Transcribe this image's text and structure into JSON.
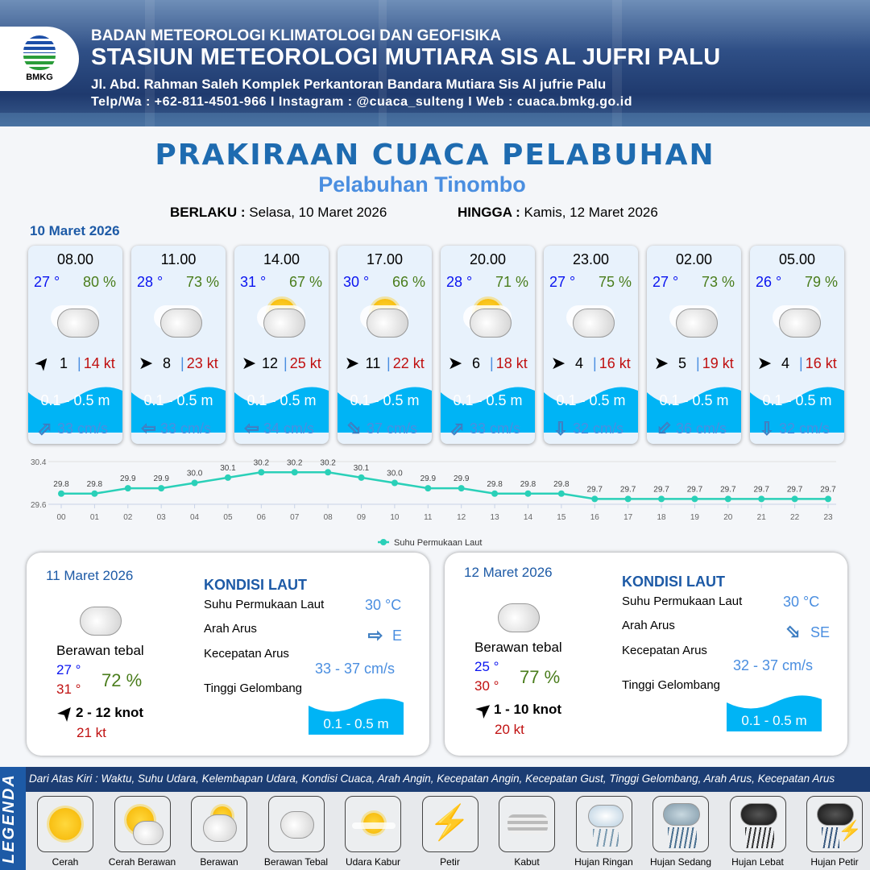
{
  "header": {
    "logo_text": "BMKG",
    "agency": "BADAN METEOROLOGI KLIMATOLOGI DAN GEOFISIKA",
    "station": "STASIUN METEOROLOGI MUTIARA SIS AL JUFRI PALU",
    "address": "Jl. Abd. Rahman Saleh Komplek Perkantoran Bandara Mutiara Sis Al jufrie Palu",
    "contact": "Telp/Wa : +62-811-4501-966  I  Instagram : @cuaca_sulteng  I  Web : cuaca.bmkg.go.id"
  },
  "title": "PRAKIRAAN CUACA PELABUHAN",
  "subtitle": "Pelabuhan Tinombo",
  "validity": {
    "from_label": "BERLAKU :",
    "from": "Selasa, 10 Maret 2026",
    "to_label": "HINGGA :",
    "to": "Kamis, 12 Maret 2026"
  },
  "day0": "10 Maret 2026",
  "colors": {
    "temp": "#0a14f0",
    "humidity": "#4a7d1c",
    "gust": "#c01010",
    "wave": "#00b4f5",
    "accent": "#1d5aa6",
    "sst_line": "#2ad0b8"
  },
  "cards": [
    {
      "time": "08.00",
      "temp": "27 °",
      "rh": "80 %",
      "weather": "berawan-tebal",
      "wind_dir_deg": -50,
      "wind": "1",
      "gust": "14 kt",
      "wave": "0.1 - 0.5 m",
      "current_dir": "NE",
      "current": "33 cm/s"
    },
    {
      "time": "11.00",
      "temp": "28 °",
      "rh": "73 %",
      "weather": "berawan-tebal",
      "wind_dir_deg": 0,
      "wind": "8",
      "gust": "23 kt",
      "wave": "0.1 - 0.5 m",
      "current_dir": "W",
      "current": "33 cm/s"
    },
    {
      "time": "14.00",
      "temp": "31 °",
      "rh": "67 %",
      "weather": "berawan",
      "wind_dir_deg": 0,
      "wind": "12",
      "gust": "25 kt",
      "wave": "0.1 - 0.5 m",
      "current_dir": "W",
      "current": "34 cm/s"
    },
    {
      "time": "17.00",
      "temp": "30 °",
      "rh": "66 %",
      "weather": "berawan",
      "wind_dir_deg": 0,
      "wind": "11",
      "gust": "22 kt",
      "wave": "0.1 - 0.5 m",
      "current_dir": "SE",
      "current": "37 cm/s"
    },
    {
      "time": "20.00",
      "temp": "28 °",
      "rh": "71 %",
      "weather": "berawan",
      "wind_dir_deg": 0,
      "wind": "6",
      "gust": "18 kt",
      "wave": "0.1 - 0.5 m",
      "current_dir": "NE",
      "current": "33 cm/s"
    },
    {
      "time": "23.00",
      "temp": "27 °",
      "rh": "75 %",
      "weather": "berawan-tebal",
      "wind_dir_deg": 0,
      "wind": "4",
      "gust": "16 kt",
      "wave": "0.1 - 0.5 m",
      "current_dir": "S",
      "current": "32 cm/s"
    },
    {
      "time": "02.00",
      "temp": "27 °",
      "rh": "73 %",
      "weather": "berawan-tebal",
      "wind_dir_deg": 0,
      "wind": "5",
      "gust": "19 kt",
      "wave": "0.1 - 0.5 m",
      "current_dir": "SW",
      "current": "36 cm/s"
    },
    {
      "time": "05.00",
      "temp": "26 °",
      "rh": "79 %",
      "weather": "berawan-tebal",
      "wind_dir_deg": 0,
      "wind": "4",
      "gust": "16 kt",
      "wave": "0.1 - 0.5 m",
      "current_dir": "S",
      "current": "32 cm/s"
    }
  ],
  "chart_data": {
    "type": "line",
    "categories": [
      "00",
      "01",
      "02",
      "03",
      "04",
      "05",
      "06",
      "07",
      "08",
      "09",
      "10",
      "11",
      "12",
      "13",
      "14",
      "15",
      "16",
      "17",
      "18",
      "19",
      "20",
      "21",
      "22",
      "23"
    ],
    "series": [
      {
        "name": "Suhu Permukaan Laut",
        "values": [
          29.8,
          29.8,
          29.9,
          29.9,
          30.0,
          30.1,
          30.2,
          30.2,
          30.2,
          30.1,
          30.0,
          29.9,
          29.9,
          29.8,
          29.8,
          29.8,
          29.7,
          29.7,
          29.7,
          29.7,
          29.7,
          29.7,
          29.7,
          29.7
        ]
      }
    ],
    "ylim": [
      29.6,
      30.4
    ],
    "yticks": [
      "29.6",
      "30.4"
    ],
    "grid": true,
    "legend": "bottom"
  },
  "panels": [
    {
      "date": "11 Maret 2026",
      "condition": "Berawan tebal",
      "tmin": "27 °",
      "tmax": "31 °",
      "rh": "72 %",
      "wind_dir_deg": -50,
      "wind": "2  - 12 knot",
      "gust": "21 kt",
      "title": "KONDISI LAUT",
      "sst_label": "Suhu Permukaan Laut",
      "sst": "30 °C",
      "dir_label": "Arah Arus",
      "current_dir": "E",
      "speed_label": "Kecepatan Arus",
      "speed": "33  - 37 cm/s",
      "wave_label": "Tinggi Gelombang",
      "wave": "0.1 - 0.5 m"
    },
    {
      "date": "12 Maret 2026",
      "condition": "Berawan tebal",
      "tmin": "25 °",
      "tmax": "30 °",
      "rh": "77 %",
      "wind_dir_deg": -40,
      "wind": "1  - 10 knot",
      "gust": "20 kt",
      "title": "KONDISI LAUT",
      "sst_label": "Suhu Permukaan Laut",
      "sst": "30 °C",
      "dir_label": "Arah Arus",
      "current_dir": "SE",
      "speed_label": "Kecepatan Arus",
      "speed": "32  - 37 cm/s",
      "wave_label": "Tinggi Gelombang",
      "wave": "0.1 - 0.5 m"
    }
  ],
  "legend": {
    "title": "LEGENDA",
    "description": "Dari Atas Kiri : Waktu, Suhu Udara, Kelembapan Udara, Kondisi Cuaca, Arah Angin, Kecepatan Angin, Kecepatan Gust, Tinggi Gelombang, Arah Arus, Kecepatan Arus",
    "items": [
      {
        "label": "Cerah",
        "icon": "sun"
      },
      {
        "label": "Cerah Berawan",
        "icon": "sun-cloud"
      },
      {
        "label": "Berawan",
        "icon": "cloud-sun"
      },
      {
        "label": "Berawan Tebal",
        "icon": "cloud"
      },
      {
        "label": "Udara Kabur",
        "icon": "haze"
      },
      {
        "label": "Petir",
        "icon": "lightning"
      },
      {
        "label": "Kabut",
        "icon": "fog"
      },
      {
        "label": "Hujan Ringan",
        "icon": "light-rain"
      },
      {
        "label": "Hujan Sedang",
        "icon": "moderate-rain"
      },
      {
        "label": "Hujan Lebat",
        "icon": "heavy-rain"
      },
      {
        "label": "Hujan Petir",
        "icon": "thunderstorm"
      }
    ]
  }
}
